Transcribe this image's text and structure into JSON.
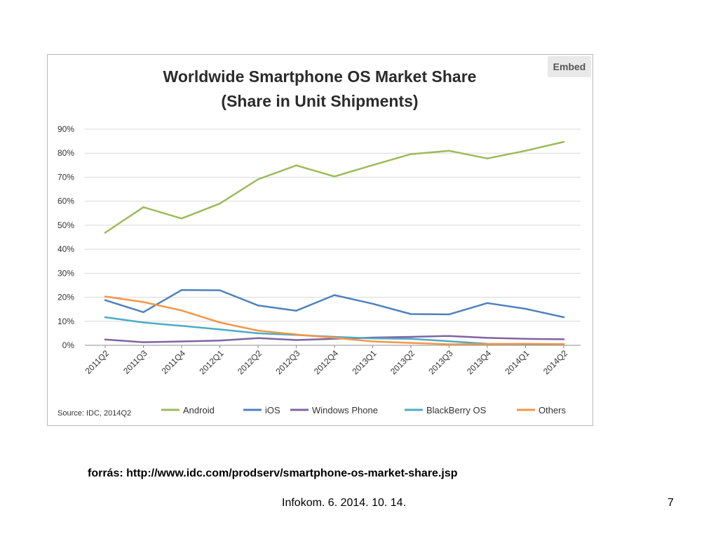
{
  "embed_label": "Embed",
  "source_line": "forrás: http://www.idc.com/prodserv/smartphone-os-market-share.jsp",
  "footer": "Infokom. 6. 2014. 10. 14.",
  "page_number": "7",
  "chart_data": {
    "type": "line",
    "title": "Worldwide Smartphone OS Market Share",
    "subtitle": "(Share in Unit Shipments)",
    "source_note": "Source: IDC, 2014Q2",
    "xlabel": "",
    "ylabel": "",
    "categories": [
      "2011Q2",
      "2011Q3",
      "2011Q4",
      "2012Q1",
      "2012Q2",
      "2012Q3",
      "2012Q4",
      "2013Q1",
      "2013Q2",
      "2013Q3",
      "2013Q4",
      "2014Q1",
      "2014Q2"
    ],
    "ylim": [
      0,
      90
    ],
    "yticks": [
      0,
      10,
      20,
      30,
      40,
      50,
      60,
      70,
      80,
      90
    ],
    "ytick_labels": [
      "0%",
      "10%",
      "20%",
      "30%",
      "40%",
      "50%",
      "60%",
      "70%",
      "80%",
      "90%"
    ],
    "grid": true,
    "legend_position": "bottom",
    "series": [
      {
        "name": "Android",
        "color": "#9bbb59",
        "values": [
          46.9,
          57.5,
          52.8,
          59.0,
          69.1,
          74.9,
          70.3,
          75.0,
          79.6,
          81.0,
          77.8,
          81.0,
          84.7
        ]
      },
      {
        "name": "iOS",
        "color": "#4f81bd",
        "values": [
          18.8,
          13.8,
          23.0,
          22.9,
          16.6,
          14.4,
          20.9,
          17.3,
          13.0,
          12.9,
          17.6,
          15.2,
          11.7
        ]
      },
      {
        "name": "Windows Phone",
        "color": "#8064a2",
        "values": [
          2.4,
          1.3,
          1.6,
          2.0,
          3.0,
          2.2,
          2.7,
          3.2,
          3.5,
          3.9,
          3.1,
          2.7,
          2.5
        ]
      },
      {
        "name": "BlackBerry OS",
        "color": "#4bacc6",
        "values": [
          11.7,
          9.5,
          8.1,
          6.6,
          5.0,
          4.3,
          3.5,
          2.9,
          2.7,
          1.7,
          0.6,
          0.5,
          0.5
        ]
      },
      {
        "name": "Others",
        "color": "#f79646",
        "values": [
          20.3,
          18.0,
          14.5,
          9.5,
          6.1,
          4.5,
          3.1,
          1.6,
          1.0,
          0.4,
          0.5,
          0.6,
          0.5
        ]
      }
    ]
  }
}
